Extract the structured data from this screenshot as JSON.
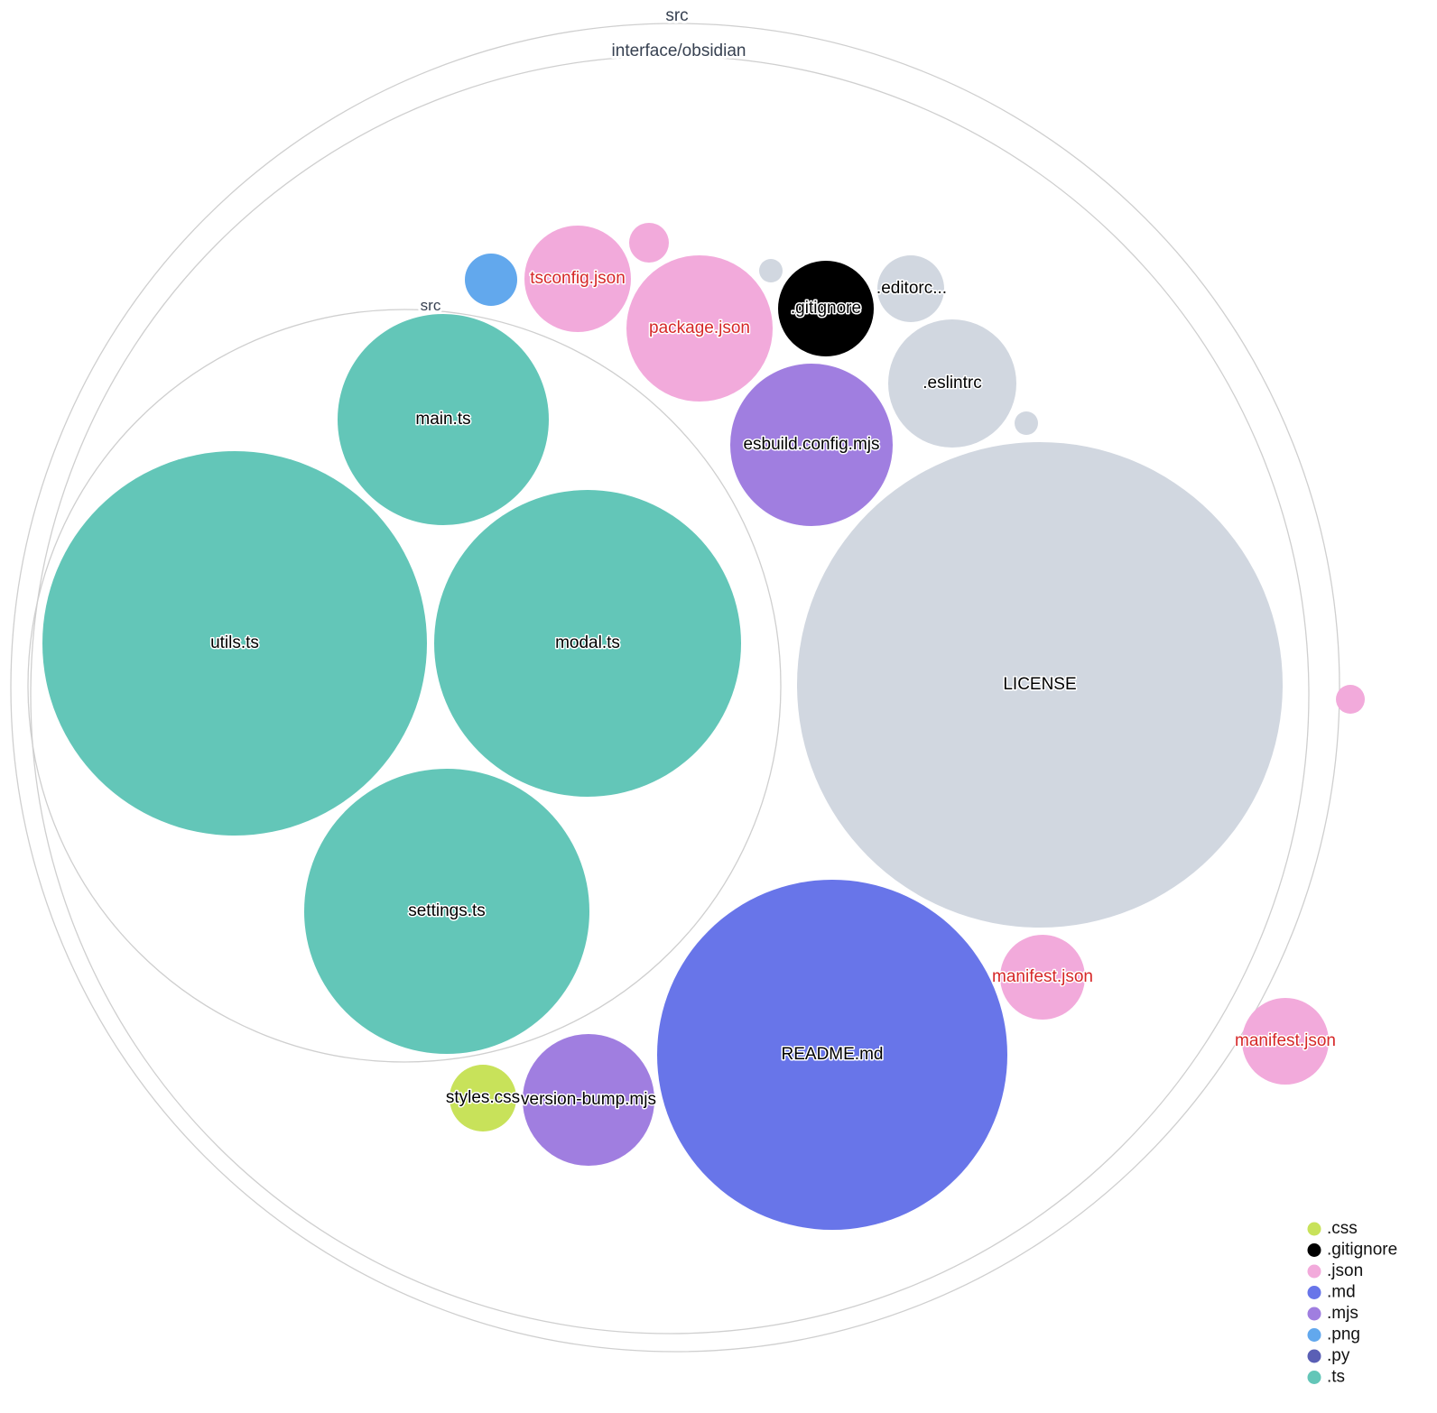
{
  "folders": [
    {
      "name": "src",
      "role": "root"
    },
    {
      "name": "interface/obsidian",
      "role": "subfolder"
    },
    {
      "name": "src",
      "role": "inner"
    }
  ],
  "files": [
    {
      "label": "utils.ts",
      "ext": ".ts"
    },
    {
      "label": "modal.ts",
      "ext": ".ts"
    },
    {
      "label": "main.ts",
      "ext": ".ts"
    },
    {
      "label": "settings.ts",
      "ext": ".ts"
    },
    {
      "label": "LICENSE",
      "ext": ""
    },
    {
      "label": "README.md",
      "ext": ".md"
    },
    {
      "label": "esbuild.config.mjs",
      "ext": ".mjs"
    },
    {
      "label": ".eslintrc",
      "ext": ""
    },
    {
      "label": "package.json",
      "ext": ".json"
    },
    {
      "label": "tsconfig.json",
      "ext": ".json"
    },
    {
      "label": ".gitignore",
      "ext": ".gitignore"
    },
    {
      "label": ".editorc...",
      "ext": ""
    },
    {
      "label": "",
      "ext": ".png"
    },
    {
      "label": "",
      "ext": ".json"
    },
    {
      "label": "",
      "ext": ""
    },
    {
      "label": "",
      "ext": ""
    },
    {
      "label": "manifest.json",
      "ext": ".json"
    },
    {
      "label": "manifest.json",
      "ext": ".json"
    },
    {
      "label": "",
      "ext": ".json"
    },
    {
      "label": "version-bump.mjs",
      "ext": ".mjs"
    },
    {
      "label": "styles.css",
      "ext": ".css"
    }
  ],
  "colors": {
    ".css": "#c8e25a",
    ".gitignore": "#000000",
    ".json": "#f2aadb",
    ".md": "#6875e9",
    ".mjs": "#a07ee0",
    ".png": "#62a8ed",
    ".py": "#5a5fb5",
    ".ts": "#63c6b8",
    "other": "#d1d7e0",
    "json_label": "#d62728"
  },
  "legend": [
    ".css",
    ".gitignore",
    ".json",
    ".md",
    ".mjs",
    ".png",
    ".py",
    ".ts"
  ]
}
